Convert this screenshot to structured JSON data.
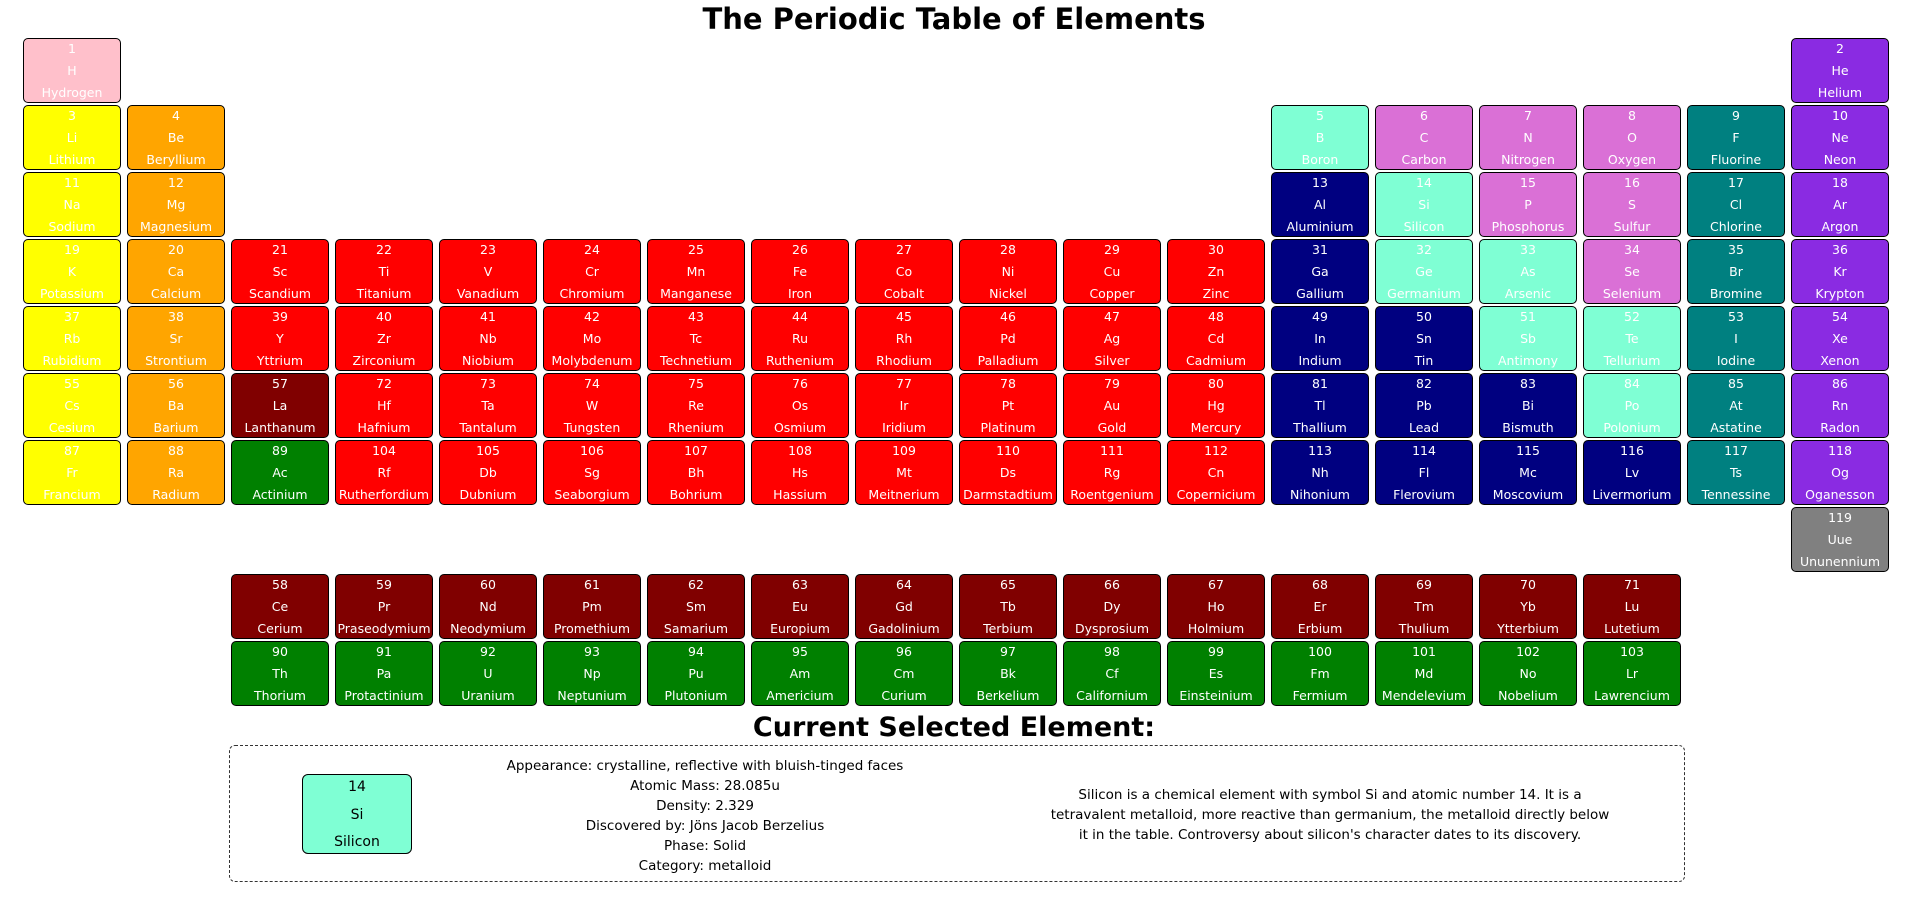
{
  "page_title": "The Periodic Table of Elements",
  "selected_heading": "Current Selected Element:",
  "colors": {
    "nonmetal": "#ffc0cb",
    "alkali": "#ffff00",
    "alkaline": "#ffa500",
    "transition": "#ff0000",
    "lanthanide": "#800000",
    "actinide": "#008000",
    "metalloid": "#7fffd4",
    "polyatomic": "#da70d6",
    "diatomic": "#008080",
    "noble": "#8a2be2",
    "post": "#000080",
    "unknown": "#808080"
  },
  "elements": [
    {
      "n": "1",
      "sym": "H",
      "name": "Hydrogen",
      "cat": "nonmetal",
      "row": 1,
      "col": 1
    },
    {
      "n": "2",
      "sym": "He",
      "name": "Helium",
      "cat": "noble",
      "row": 1,
      "col": 18
    },
    {
      "n": "3",
      "sym": "Li",
      "name": "Lithium",
      "cat": "alkali",
      "row": 2,
      "col": 1
    },
    {
      "n": "4",
      "sym": "Be",
      "name": "Beryllium",
      "cat": "alkaline",
      "row": 2,
      "col": 2
    },
    {
      "n": "5",
      "sym": "B",
      "name": "Boron",
      "cat": "metalloid",
      "row": 2,
      "col": 13
    },
    {
      "n": "6",
      "sym": "C",
      "name": "Carbon",
      "cat": "polyatomic",
      "row": 2,
      "col": 14
    },
    {
      "n": "7",
      "sym": "N",
      "name": "Nitrogen",
      "cat": "polyatomic",
      "row": 2,
      "col": 15
    },
    {
      "n": "8",
      "sym": "O",
      "name": "Oxygen",
      "cat": "polyatomic",
      "row": 2,
      "col": 16
    },
    {
      "n": "9",
      "sym": "F",
      "name": "Fluorine",
      "cat": "diatomic",
      "row": 2,
      "col": 17
    },
    {
      "n": "10",
      "sym": "Ne",
      "name": "Neon",
      "cat": "noble",
      "row": 2,
      "col": 18
    },
    {
      "n": "11",
      "sym": "Na",
      "name": "Sodium",
      "cat": "alkali",
      "row": 3,
      "col": 1
    },
    {
      "n": "12",
      "sym": "Mg",
      "name": "Magnesium",
      "cat": "alkaline",
      "row": 3,
      "col": 2
    },
    {
      "n": "13",
      "sym": "Al",
      "name": "Aluminium",
      "cat": "post",
      "row": 3,
      "col": 13
    },
    {
      "n": "14",
      "sym": "Si",
      "name": "Silicon",
      "cat": "metalloid",
      "row": 3,
      "col": 14
    },
    {
      "n": "15",
      "sym": "P",
      "name": "Phosphorus",
      "cat": "polyatomic",
      "row": 3,
      "col": 15
    },
    {
      "n": "16",
      "sym": "S",
      "name": "Sulfur",
      "cat": "polyatomic",
      "row": 3,
      "col": 16
    },
    {
      "n": "17",
      "sym": "Cl",
      "name": "Chlorine",
      "cat": "diatomic",
      "row": 3,
      "col": 17
    },
    {
      "n": "18",
      "sym": "Ar",
      "name": "Argon",
      "cat": "noble",
      "row": 3,
      "col": 18
    },
    {
      "n": "19",
      "sym": "K",
      "name": "Potassium",
      "cat": "alkali",
      "row": 4,
      "col": 1
    },
    {
      "n": "20",
      "sym": "Ca",
      "name": "Calcium",
      "cat": "alkaline",
      "row": 4,
      "col": 2
    },
    {
      "n": "21",
      "sym": "Sc",
      "name": "Scandium",
      "cat": "transition",
      "row": 4,
      "col": 3
    },
    {
      "n": "22",
      "sym": "Ti",
      "name": "Titanium",
      "cat": "transition",
      "row": 4,
      "col": 4
    },
    {
      "n": "23",
      "sym": "V",
      "name": "Vanadium",
      "cat": "transition",
      "row": 4,
      "col": 5
    },
    {
      "n": "24",
      "sym": "Cr",
      "name": "Chromium",
      "cat": "transition",
      "row": 4,
      "col": 6
    },
    {
      "n": "25",
      "sym": "Mn",
      "name": "Manganese",
      "cat": "transition",
      "row": 4,
      "col": 7
    },
    {
      "n": "26",
      "sym": "Fe",
      "name": "Iron",
      "cat": "transition",
      "row": 4,
      "col": 8
    },
    {
      "n": "27",
      "sym": "Co",
      "name": "Cobalt",
      "cat": "transition",
      "row": 4,
      "col": 9
    },
    {
      "n": "28",
      "sym": "Ni",
      "name": "Nickel",
      "cat": "transition",
      "row": 4,
      "col": 10
    },
    {
      "n": "29",
      "sym": "Cu",
      "name": "Copper",
      "cat": "transition",
      "row": 4,
      "col": 11
    },
    {
      "n": "30",
      "sym": "Zn",
      "name": "Zinc",
      "cat": "transition",
      "row": 4,
      "col": 12
    },
    {
      "n": "31",
      "sym": "Ga",
      "name": "Gallium",
      "cat": "post",
      "row": 4,
      "col": 13
    },
    {
      "n": "32",
      "sym": "Ge",
      "name": "Germanium",
      "cat": "metalloid",
      "row": 4,
      "col": 14
    },
    {
      "n": "33",
      "sym": "As",
      "name": "Arsenic",
      "cat": "metalloid",
      "row": 4,
      "col": 15
    },
    {
      "n": "34",
      "sym": "Se",
      "name": "Selenium",
      "cat": "polyatomic",
      "row": 4,
      "col": 16
    },
    {
      "n": "35",
      "sym": "Br",
      "name": "Bromine",
      "cat": "diatomic",
      "row": 4,
      "col": 17
    },
    {
      "n": "36",
      "sym": "Kr",
      "name": "Krypton",
      "cat": "noble",
      "row": 4,
      "col": 18
    },
    {
      "n": "37",
      "sym": "Rb",
      "name": "Rubidium",
      "cat": "alkali",
      "row": 5,
      "col": 1
    },
    {
      "n": "38",
      "sym": "Sr",
      "name": "Strontium",
      "cat": "alkaline",
      "row": 5,
      "col": 2
    },
    {
      "n": "39",
      "sym": "Y",
      "name": "Yttrium",
      "cat": "transition",
      "row": 5,
      "col": 3
    },
    {
      "n": "40",
      "sym": "Zr",
      "name": "Zirconium",
      "cat": "transition",
      "row": 5,
      "col": 4
    },
    {
      "n": "41",
      "sym": "Nb",
      "name": "Niobium",
      "cat": "transition",
      "row": 5,
      "col": 5
    },
    {
      "n": "42",
      "sym": "Mo",
      "name": "Molybdenum",
      "cat": "transition",
      "row": 5,
      "col": 6
    },
    {
      "n": "43",
      "sym": "Tc",
      "name": "Technetium",
      "cat": "transition",
      "row": 5,
      "col": 7
    },
    {
      "n": "44",
      "sym": "Ru",
      "name": "Ruthenium",
      "cat": "transition",
      "row": 5,
      "col": 8
    },
    {
      "n": "45",
      "sym": "Rh",
      "name": "Rhodium",
      "cat": "transition",
      "row": 5,
      "col": 9
    },
    {
      "n": "46",
      "sym": "Pd",
      "name": "Palladium",
      "cat": "transition",
      "row": 5,
      "col": 10
    },
    {
      "n": "47",
      "sym": "Ag",
      "name": "Silver",
      "cat": "transition",
      "row": 5,
      "col": 11
    },
    {
      "n": "48",
      "sym": "Cd",
      "name": "Cadmium",
      "cat": "transition",
      "row": 5,
      "col": 12
    },
    {
      "n": "49",
      "sym": "In",
      "name": "Indium",
      "cat": "post",
      "row": 5,
      "col": 13
    },
    {
      "n": "50",
      "sym": "Sn",
      "name": "Tin",
      "cat": "post",
      "row": 5,
      "col": 14
    },
    {
      "n": "51",
      "sym": "Sb",
      "name": "Antimony",
      "cat": "metalloid",
      "row": 5,
      "col": 15
    },
    {
      "n": "52",
      "sym": "Te",
      "name": "Tellurium",
      "cat": "metalloid",
      "row": 5,
      "col": 16
    },
    {
      "n": "53",
      "sym": "I",
      "name": "Iodine",
      "cat": "diatomic",
      "row": 5,
      "col": 17
    },
    {
      "n": "54",
      "sym": "Xe",
      "name": "Xenon",
      "cat": "noble",
      "row": 5,
      "col": 18
    },
    {
      "n": "55",
      "sym": "Cs",
      "name": "Cesium",
      "cat": "alkali",
      "row": 6,
      "col": 1
    },
    {
      "n": "56",
      "sym": "Ba",
      "name": "Barium",
      "cat": "alkaline",
      "row": 6,
      "col": 2
    },
    {
      "n": "57",
      "sym": "La",
      "name": "Lanthanum",
      "cat": "lanthanide",
      "row": 6,
      "col": 3
    },
    {
      "n": "72",
      "sym": "Hf",
      "name": "Hafnium",
      "cat": "transition",
      "row": 6,
      "col": 4
    },
    {
      "n": "73",
      "sym": "Ta",
      "name": "Tantalum",
      "cat": "transition",
      "row": 6,
      "col": 5
    },
    {
      "n": "74",
      "sym": "W",
      "name": "Tungsten",
      "cat": "transition",
      "row": 6,
      "col": 6
    },
    {
      "n": "75",
      "sym": "Re",
      "name": "Rhenium",
      "cat": "transition",
      "row": 6,
      "col": 7
    },
    {
      "n": "76",
      "sym": "Os",
      "name": "Osmium",
      "cat": "transition",
      "row": 6,
      "col": 8
    },
    {
      "n": "77",
      "sym": "Ir",
      "name": "Iridium",
      "cat": "transition",
      "row": 6,
      "col": 9
    },
    {
      "n": "78",
      "sym": "Pt",
      "name": "Platinum",
      "cat": "transition",
      "row": 6,
      "col": 10
    },
    {
      "n": "79",
      "sym": "Au",
      "name": "Gold",
      "cat": "transition",
      "row": 6,
      "col": 11
    },
    {
      "n": "80",
      "sym": "Hg",
      "name": "Mercury",
      "cat": "transition",
      "row": 6,
      "col": 12
    },
    {
      "n": "81",
      "sym": "Tl",
      "name": "Thallium",
      "cat": "post",
      "row": 6,
      "col": 13
    },
    {
      "n": "82",
      "sym": "Pb",
      "name": "Lead",
      "cat": "post",
      "row": 6,
      "col": 14
    },
    {
      "n": "83",
      "sym": "Bi",
      "name": "Bismuth",
      "cat": "post",
      "row": 6,
      "col": 15
    },
    {
      "n": "84",
      "sym": "Po",
      "name": "Polonium",
      "cat": "metalloid",
      "row": 6,
      "col": 16
    },
    {
      "n": "85",
      "sym": "At",
      "name": "Astatine",
      "cat": "diatomic",
      "row": 6,
      "col": 17
    },
    {
      "n": "86",
      "sym": "Rn",
      "name": "Radon",
      "cat": "noble",
      "row": 6,
      "col": 18
    },
    {
      "n": "87",
      "sym": "Fr",
      "name": "Francium",
      "cat": "alkali",
      "row": 7,
      "col": 1
    },
    {
      "n": "88",
      "sym": "Ra",
      "name": "Radium",
      "cat": "alkaline",
      "row": 7,
      "col": 2
    },
    {
      "n": "89",
      "sym": "Ac",
      "name": "Actinium",
      "cat": "actinide",
      "row": 7,
      "col": 3
    },
    {
      "n": "104",
      "sym": "Rf",
      "name": "Rutherfordium",
      "cat": "transition",
      "row": 7,
      "col": 4
    },
    {
      "n": "105",
      "sym": "Db",
      "name": "Dubnium",
      "cat": "transition",
      "row": 7,
      "col": 5
    },
    {
      "n": "106",
      "sym": "Sg",
      "name": "Seaborgium",
      "cat": "transition",
      "row": 7,
      "col": 6
    },
    {
      "n": "107",
      "sym": "Bh",
      "name": "Bohrium",
      "cat": "transition",
      "row": 7,
      "col": 7
    },
    {
      "n": "108",
      "sym": "Hs",
      "name": "Hassium",
      "cat": "transition",
      "row": 7,
      "col": 8
    },
    {
      "n": "109",
      "sym": "Mt",
      "name": "Meitnerium",
      "cat": "transition",
      "row": 7,
      "col": 9
    },
    {
      "n": "110",
      "sym": "Ds",
      "name": "Darmstadtium",
      "cat": "transition",
      "row": 7,
      "col": 10
    },
    {
      "n": "111",
      "sym": "Rg",
      "name": "Roentgenium",
      "cat": "transition",
      "row": 7,
      "col": 11
    },
    {
      "n": "112",
      "sym": "Cn",
      "name": "Copernicium",
      "cat": "transition",
      "row": 7,
      "col": 12
    },
    {
      "n": "113",
      "sym": "Nh",
      "name": "Nihonium",
      "cat": "post",
      "row": 7,
      "col": 13
    },
    {
      "n": "114",
      "sym": "Fl",
      "name": "Flerovium",
      "cat": "post",
      "row": 7,
      "col": 14
    },
    {
      "n": "115",
      "sym": "Mc",
      "name": "Moscovium",
      "cat": "post",
      "row": 7,
      "col": 15
    },
    {
      "n": "116",
      "sym": "Lv",
      "name": "Livermorium",
      "cat": "post",
      "row": 7,
      "col": 16
    },
    {
      "n": "117",
      "sym": "Ts",
      "name": "Tennessine",
      "cat": "diatomic",
      "row": 7,
      "col": 17
    },
    {
      "n": "118",
      "sym": "Og",
      "name": "Oganesson",
      "cat": "noble",
      "row": 7,
      "col": 18
    },
    {
      "n": "119",
      "sym": "Uue",
      "name": "Ununennium",
      "cat": "unknown",
      "row": 8,
      "col": 18
    },
    {
      "n": "58",
      "sym": "Ce",
      "name": "Cerium",
      "cat": "lanthanide",
      "row": 9,
      "col": 3
    },
    {
      "n": "59",
      "sym": "Pr",
      "name": "Praseodymium",
      "cat": "lanthanide",
      "row": 9,
      "col": 4
    },
    {
      "n": "60",
      "sym": "Nd",
      "name": "Neodymium",
      "cat": "lanthanide",
      "row": 9,
      "col": 5
    },
    {
      "n": "61",
      "sym": "Pm",
      "name": "Promethium",
      "cat": "lanthanide",
      "row": 9,
      "col": 6
    },
    {
      "n": "62",
      "sym": "Sm",
      "name": "Samarium",
      "cat": "lanthanide",
      "row": 9,
      "col": 7
    },
    {
      "n": "63",
      "sym": "Eu",
      "name": "Europium",
      "cat": "lanthanide",
      "row": 9,
      "col": 8
    },
    {
      "n": "64",
      "sym": "Gd",
      "name": "Gadolinium",
      "cat": "lanthanide",
      "row": 9,
      "col": 9
    },
    {
      "n": "65",
      "sym": "Tb",
      "name": "Terbium",
      "cat": "lanthanide",
      "row": 9,
      "col": 10
    },
    {
      "n": "66",
      "sym": "Dy",
      "name": "Dysprosium",
      "cat": "lanthanide",
      "row": 9,
      "col": 11
    },
    {
      "n": "67",
      "sym": "Ho",
      "name": "Holmium",
      "cat": "lanthanide",
      "row": 9,
      "col": 12
    },
    {
      "n": "68",
      "sym": "Er",
      "name": "Erbium",
      "cat": "lanthanide",
      "row": 9,
      "col": 13
    },
    {
      "n": "69",
      "sym": "Tm",
      "name": "Thulium",
      "cat": "lanthanide",
      "row": 9,
      "col": 14
    },
    {
      "n": "70",
      "sym": "Yb",
      "name": "Ytterbium",
      "cat": "lanthanide",
      "row": 9,
      "col": 15
    },
    {
      "n": "71",
      "sym": "Lu",
      "name": "Lutetium",
      "cat": "lanthanide",
      "row": 9,
      "col": 16
    },
    {
      "n": "90",
      "sym": "Th",
      "name": "Thorium",
      "cat": "actinide",
      "row": 10,
      "col": 3
    },
    {
      "n": "91",
      "sym": "Pa",
      "name": "Protactinium",
      "cat": "actinide",
      "row": 10,
      "col": 4
    },
    {
      "n": "92",
      "sym": "U",
      "name": "Uranium",
      "cat": "actinide",
      "row": 10,
      "col": 5
    },
    {
      "n": "93",
      "sym": "Np",
      "name": "Neptunium",
      "cat": "actinide",
      "row": 10,
      "col": 6
    },
    {
      "n": "94",
      "sym": "Pu",
      "name": "Plutonium",
      "cat": "actinide",
      "row": 10,
      "col": 7
    },
    {
      "n": "95",
      "sym": "Am",
      "name": "Americium",
      "cat": "actinide",
      "row": 10,
      "col": 8
    },
    {
      "n": "96",
      "sym": "Cm",
      "name": "Curium",
      "cat": "actinide",
      "row": 10,
      "col": 9
    },
    {
      "n": "97",
      "sym": "Bk",
      "name": "Berkelium",
      "cat": "actinide",
      "row": 10,
      "col": 10
    },
    {
      "n": "98",
      "sym": "Cf",
      "name": "Californium",
      "cat": "actinide",
      "row": 10,
      "col": 11
    },
    {
      "n": "99",
      "sym": "Es",
      "name": "Einsteinium",
      "cat": "actinide",
      "row": 10,
      "col": 12
    },
    {
      "n": "100",
      "sym": "Fm",
      "name": "Fermium",
      "cat": "actinide",
      "row": 10,
      "col": 13
    },
    {
      "n": "101",
      "sym": "Md",
      "name": "Mendelevium",
      "cat": "actinide",
      "row": 10,
      "col": 14
    },
    {
      "n": "102",
      "sym": "No",
      "name": "Nobelium",
      "cat": "actinide",
      "row": 10,
      "col": 15
    },
    {
      "n": "103",
      "sym": "Lr",
      "name": "Lawrencium",
      "cat": "actinide",
      "row": 10,
      "col": 16
    }
  ],
  "selected": {
    "number": "14",
    "symbol": "Si",
    "name": "Silicon",
    "appearance": "Appearance: crystalline, reflective with bluish-tinged faces",
    "atomic_mass": "Atomic Mass: 28.085u",
    "density": "Density: 2.329",
    "discovered_by": "Discovered by: Jöns Jacob Berzelius",
    "phase": "Phase: Solid",
    "category": "Category: metalloid",
    "description": "Silicon is a chemical element with symbol Si and atomic number 14. It is a tetravalent metalloid, more reactive than germanium, the metalloid directly below it in the table. Controversy about silicon's character dates to its discovery."
  }
}
